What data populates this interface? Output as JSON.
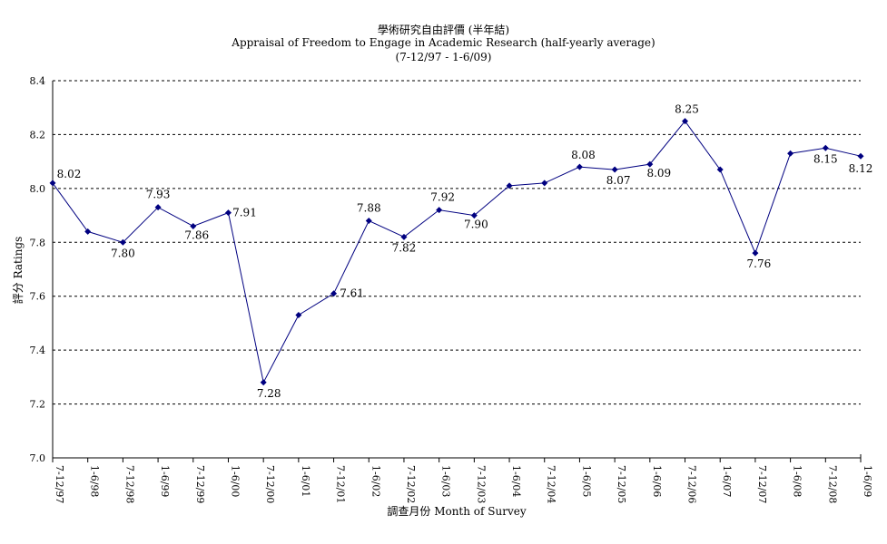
{
  "chart_data": {
    "type": "line",
    "title": "學術研究自由評價 (半年結)",
    "subtitle": "Appraisal of Freedom to Engage in Academic Research (half-yearly average)",
    "period": "(7-12/97 - 1-6/09)",
    "xlabel": "調查月份 Month of Survey",
    "ylabel": "評分 Ratings",
    "ylim": [
      7.0,
      8.4
    ],
    "yticks": [
      "7.0",
      "7.2",
      "7.4",
      "7.6",
      "7.8",
      "8.0",
      "8.2",
      "8.4"
    ],
    "grid": true,
    "categories": [
      "7-12/97",
      "1-6/98",
      "7-12/98",
      "1-6/99",
      "7-12/99",
      "1-6/00",
      "7-12/00",
      "1-6/01",
      "7-12/01",
      "1-6/02",
      "7-12/02",
      "1-6/03",
      "7-12/03",
      "1-6/04",
      "7-12/04",
      "1-6/05",
      "7-12/05",
      "1-6/06",
      "7-12/06",
      "1-6/07",
      "7-12/07",
      "1-6/08",
      "7-12/08",
      "1-6/09"
    ],
    "values": [
      8.02,
      7.84,
      7.8,
      7.93,
      7.86,
      7.91,
      7.28,
      7.53,
      7.61,
      7.88,
      7.82,
      7.92,
      7.9,
      8.01,
      8.02,
      8.08,
      8.07,
      8.09,
      8.25,
      8.07,
      7.76,
      8.13,
      8.15,
      8.12
    ],
    "data_labels": [
      "8.02",
      "",
      "7.80",
      "7.93",
      "7.86",
      "7.91",
      "7.28",
      "",
      "7.61",
      "7.88",
      "7.82",
      "7.92",
      "7.90",
      "",
      "",
      "8.08",
      "8.07",
      "8.09",
      "8.25",
      "",
      "7.76",
      "",
      "8.15",
      "8.12"
    ],
    "colors": {
      "line": "#000080",
      "marker": "#000080",
      "grid": "#000000",
      "axis": "#000000"
    }
  }
}
